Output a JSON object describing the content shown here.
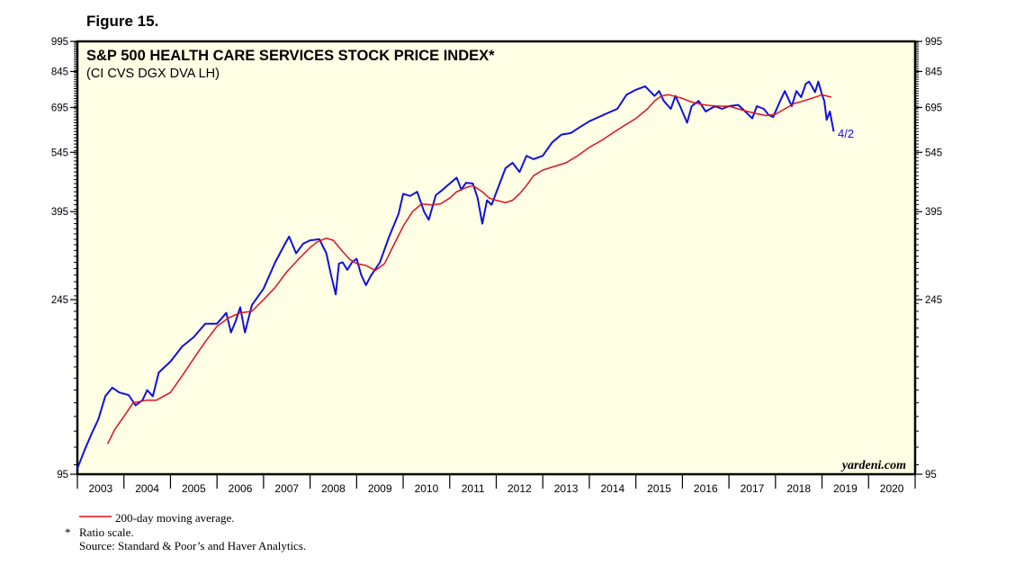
{
  "figure_label": "Figure 15.",
  "chart_data": {
    "type": "line",
    "title": "S&P 500 HEALTH CARE SERVICES STOCK PRICE INDEX*",
    "subtitle": "(CI CVS DGX DVA LH)",
    "scale": "log",
    "ylim": [
      95,
      995
    ],
    "y_ticks": [
      95,
      245,
      395,
      545,
      695,
      845,
      995
    ],
    "x_range": [
      2003,
      2021
    ],
    "x_tick_labels": [
      "2003",
      "2004",
      "2005",
      "2006",
      "2007",
      "2008",
      "2009",
      "2010",
      "2011",
      "2012",
      "2013",
      "2014",
      "2015",
      "2016",
      "2017",
      "2018",
      "2019",
      "2020"
    ],
    "end_annotation": "4/2",
    "watermark": "yardeni.com",
    "colors": {
      "price": "#1010e0",
      "ma": "#e01020",
      "background": "#ffffe6",
      "annotation": "#1010e0"
    },
    "series": [
      {
        "name": "S&P 500 Health Care Services Stock Price Index",
        "x": [
          2003.0,
          2003.15,
          2003.3,
          2003.45,
          2003.6,
          2003.75,
          2003.9,
          2004.1,
          2004.25,
          2004.4,
          2004.5,
          2004.62,
          2004.75,
          2005.0,
          2005.25,
          2005.5,
          2005.75,
          2006.0,
          2006.2,
          2006.3,
          2006.4,
          2006.5,
          2006.6,
          2006.75,
          2007.0,
          2007.25,
          2007.45,
          2007.55,
          2007.7,
          2007.85,
          2008.0,
          2008.2,
          2008.35,
          2008.45,
          2008.55,
          2008.62,
          2008.7,
          2008.8,
          2008.9,
          2009.0,
          2009.1,
          2009.2,
          2009.3,
          2009.5,
          2009.7,
          2009.9,
          2010.0,
          2010.15,
          2010.3,
          2010.45,
          2010.55,
          2010.7,
          2010.85,
          2011.0,
          2011.15,
          2011.25,
          2011.35,
          2011.5,
          2011.6,
          2011.7,
          2011.8,
          2011.9,
          2012.0,
          2012.2,
          2012.35,
          2012.5,
          2012.65,
          2012.8,
          2013.0,
          2013.2,
          2013.4,
          2013.6,
          2013.8,
          2014.0,
          2014.2,
          2014.4,
          2014.6,
          2014.8,
          2015.0,
          2015.2,
          2015.4,
          2015.5,
          2015.6,
          2015.75,
          2015.85,
          2015.95,
          2016.1,
          2016.2,
          2016.35,
          2016.5,
          2016.7,
          2016.85,
          2017.0,
          2017.2,
          2017.35,
          2017.5,
          2017.6,
          2017.75,
          2017.85,
          2017.95,
          2018.1,
          2018.2,
          2018.35,
          2018.45,
          2018.55,
          2018.65,
          2018.72,
          2018.78,
          2018.85,
          2018.92,
          2019.0,
          2019.05,
          2019.1,
          2019.17,
          2019.25
        ],
        "values": [
          98,
          108,
          118,
          128,
          145,
          152,
          148,
          146,
          138,
          142,
          150,
          145,
          165,
          175,
          190,
          200,
          215,
          215,
          228,
          205,
          218,
          235,
          205,
          238,
          260,
          300,
          330,
          345,
          315,
          332,
          338,
          340,
          315,
          280,
          252,
          298,
          300,
          288,
          300,
          306,
          280,
          265,
          278,
          300,
          345,
          390,
          435,
          430,
          440,
          395,
          378,
          432,
          445,
          460,
          475,
          445,
          462,
          460,
          425,
          370,
          420,
          410,
          438,
          500,
          515,
          490,
          535,
          525,
          535,
          575,
          600,
          605,
          625,
          645,
          660,
          675,
          690,
          745,
          765,
          780,
          740,
          760,
          720,
          690,
          740,
          700,
          640,
          700,
          720,
          680,
          700,
          690,
          700,
          705,
          680,
          655,
          700,
          690,
          668,
          660,
          720,
          760,
          700,
          760,
          735,
          790,
          800,
          780,
          755,
          800,
          745,
          720,
          650,
          680,
          610
        ]
      },
      {
        "name": "200-day moving average.",
        "x": [
          2003.65,
          2003.8,
          2004.0,
          2004.2,
          2004.5,
          2004.7,
          2005.0,
          2005.25,
          2005.5,
          2005.75,
          2006.0,
          2006.25,
          2006.5,
          2006.75,
          2007.0,
          2007.25,
          2007.5,
          2007.75,
          2008.0,
          2008.15,
          2008.35,
          2008.5,
          2008.7,
          2008.85,
          2009.0,
          2009.2,
          2009.4,
          2009.6,
          2009.8,
          2010.0,
          2010.2,
          2010.4,
          2010.6,
          2010.8,
          2011.0,
          2011.15,
          2011.35,
          2011.5,
          2011.7,
          2011.85,
          2012.0,
          2012.2,
          2012.35,
          2012.5,
          2012.65,
          2012.8,
          2013.0,
          2013.25,
          2013.5,
          2013.75,
          2014.0,
          2014.25,
          2014.5,
          2014.75,
          2015.0,
          2015.25,
          2015.4,
          2015.55,
          2015.7,
          2015.85,
          2016.0,
          2016.2,
          2016.4,
          2016.6,
          2016.8,
          2017.0,
          2017.2,
          2017.4,
          2017.6,
          2017.8,
          2018.0,
          2018.2,
          2018.4,
          2018.6,
          2018.8,
          2019.0,
          2019.2
        ],
        "values": [
          112,
          121,
          130,
          140,
          142,
          142,
          148,
          162,
          178,
          195,
          212,
          222,
          228,
          230,
          245,
          262,
          285,
          305,
          325,
          335,
          342,
          338,
          318,
          305,
          298,
          295,
          287,
          298,
          330,
          365,
          395,
          412,
          410,
          412,
          425,
          440,
          450,
          455,
          440,
          425,
          420,
          415,
          420,
          435,
          455,
          480,
          495,
          505,
          515,
          535,
          560,
          580,
          605,
          630,
          655,
          690,
          720,
          740,
          745,
          738,
          730,
          716,
          707,
          702,
          700,
          700,
          690,
          680,
          672,
          665,
          670,
          690,
          710,
          720,
          732,
          745,
          735
        ]
      }
    ]
  },
  "notes": {
    "legend_ma": "200-day moving average.",
    "footnote_marker": "*",
    "footnote_text": "Ratio scale.",
    "source": "Source: Standard & Poor’s and Haver Analytics."
  }
}
